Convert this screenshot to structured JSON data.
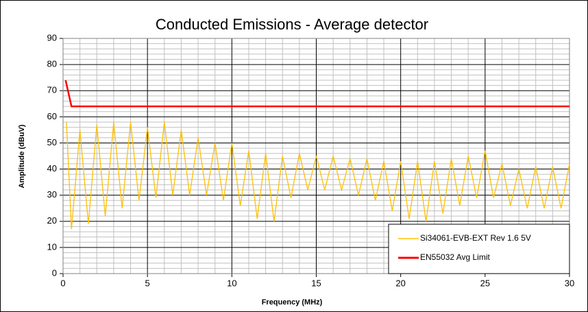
{
  "chart_data": {
    "type": "line",
    "title": "Conducted Emissions - Average detector",
    "x_label": "Frequency (MHz)",
    "y_label": "Amplitude (dBuV)",
    "xlim": [
      0,
      30
    ],
    "xticks": [
      0,
      5,
      10,
      15,
      20,
      25,
      30
    ],
    "xminorticks": [
      1,
      2,
      3,
      4,
      6,
      7,
      8,
      9,
      11,
      12,
      13,
      14,
      16,
      17,
      18,
      19,
      21,
      22,
      23,
      24,
      26,
      27,
      28,
      29
    ],
    "ylim": [
      0,
      90
    ],
    "yticks": [
      0,
      10,
      20,
      30,
      40,
      50,
      60,
      70,
      80,
      90
    ],
    "yminorticks": [
      2,
      4,
      6,
      8,
      12,
      14,
      16,
      18,
      22,
      24,
      26,
      28,
      32,
      34,
      36,
      38,
      42,
      44,
      46,
      48,
      52,
      54,
      56,
      58,
      62,
      64,
      66,
      68,
      72,
      74,
      76,
      78,
      82,
      84,
      86,
      88
    ],
    "grid": true,
    "legend": "lower right",
    "series": [
      {
        "name": "Si34061-EVB-EXT Rev 1.6 5V",
        "color": "#ffc000",
        "x": [
          0.2,
          0.5,
          1,
          1.5,
          2,
          2.5,
          3,
          3.5,
          4,
          4.5,
          5,
          5.5,
          6,
          6.5,
          7,
          7.5,
          8,
          8.5,
          9,
          9.5,
          10,
          10.5,
          11,
          11.5,
          12,
          12.5,
          13,
          13.5,
          14,
          14.5,
          15,
          15.5,
          16,
          16.5,
          17,
          17.5,
          18,
          18.5,
          19,
          19.5,
          20,
          20.5,
          21,
          21.5,
          22,
          22.5,
          23,
          23.5,
          24,
          24.5,
          25,
          25.5,
          26,
          26.5,
          27,
          27.5,
          28,
          28.5,
          29,
          29.5,
          30
        ],
        "values": [
          58,
          17,
          55,
          19,
          57,
          22,
          58,
          25,
          58,
          28,
          56,
          29,
          58,
          30,
          55,
          30,
          52,
          30,
          50,
          28,
          50,
          26,
          47,
          21,
          46,
          20,
          45,
          29,
          46,
          32,
          45,
          32,
          45,
          32,
          44,
          30,
          44,
          28,
          43,
          24,
          43,
          21,
          43,
          20,
          43,
          23,
          44,
          26,
          45,
          29,
          47,
          29,
          42,
          26,
          40,
          25,
          41,
          25,
          41,
          25,
          42
        ]
      },
      {
        "name": "EN55032 Avg Limit",
        "color": "#ff0000",
        "x": [
          0.15,
          0.5,
          30
        ],
        "values": [
          74,
          64,
          64
        ]
      }
    ]
  }
}
